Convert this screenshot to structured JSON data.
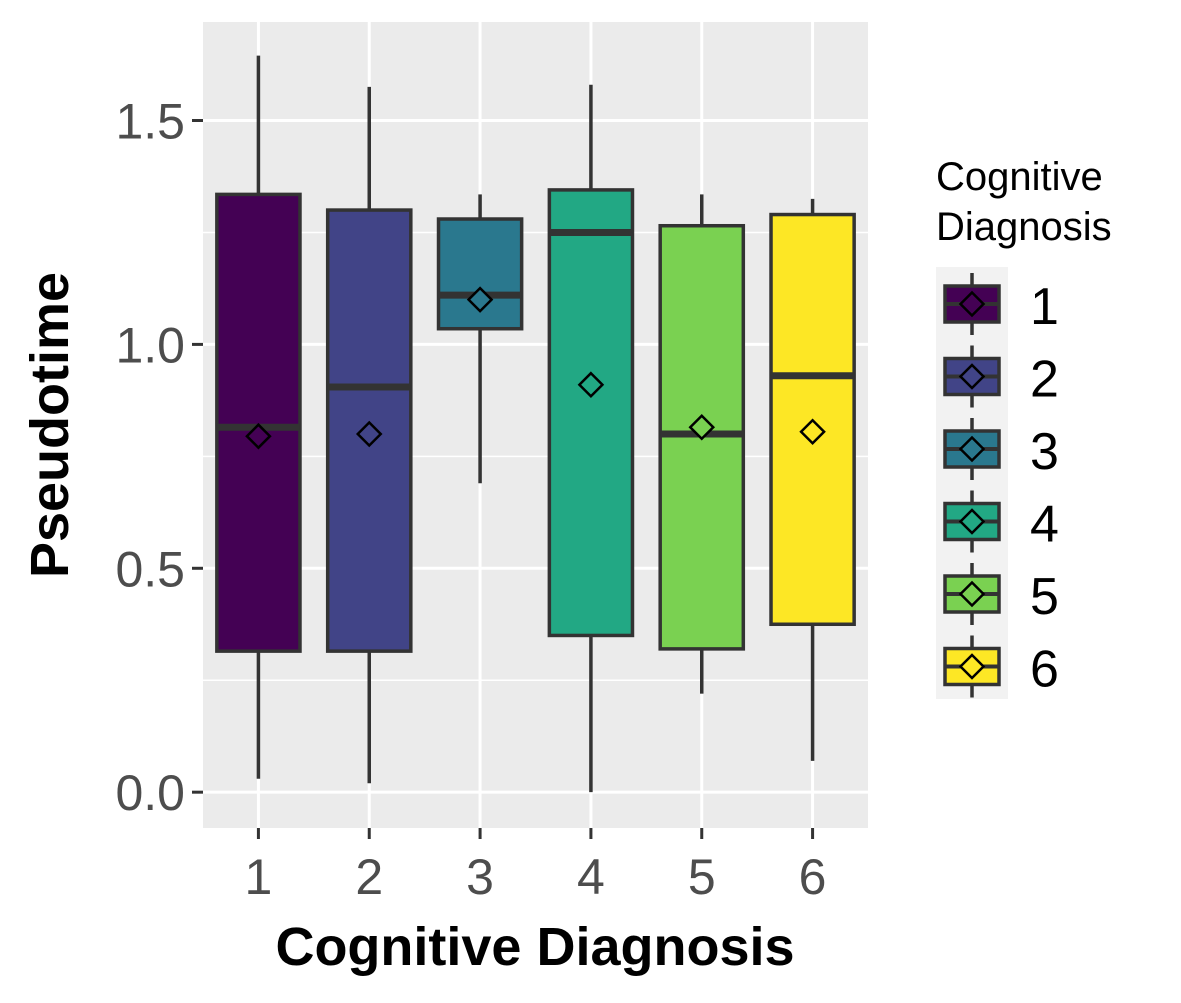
{
  "chart_data": {
    "type": "boxplot",
    "title": "",
    "xlabel": "Cognitive Diagnosis",
    "ylabel": "Pseudotime",
    "ylim": [
      -0.08,
      1.72
    ],
    "yticks": [
      "0.0",
      "0.5",
      "1.0",
      "1.5"
    ],
    "grid": true,
    "legend": {
      "title": [
        "Cognitive",
        "Diagnosis"
      ],
      "position": "right"
    },
    "categories": [
      "1",
      "2",
      "3",
      "4",
      "5",
      "6"
    ],
    "series": [
      {
        "name": "1",
        "color": "#440154",
        "whisker_low": 0.03,
        "q1": 0.315,
        "median": 0.815,
        "q3": 1.335,
        "whisker_high": 1.645,
        "mean": 0.795
      },
      {
        "name": "2",
        "color": "#414487",
        "whisker_low": 0.02,
        "q1": 0.315,
        "median": 0.905,
        "q3": 1.3,
        "whisker_high": 1.575,
        "mean": 0.8
      },
      {
        "name": "3",
        "color": "#2A788E",
        "whisker_low": 0.69,
        "q1": 1.035,
        "median": 1.11,
        "q3": 1.28,
        "whisker_high": 1.335,
        "mean": 1.1
      },
      {
        "name": "4",
        "color": "#22A884",
        "whisker_low": 0.0,
        "q1": 0.35,
        "median": 1.25,
        "q3": 1.345,
        "whisker_high": 1.58,
        "mean": 0.91
      },
      {
        "name": "5",
        "color": "#7AD151",
        "whisker_low": 0.22,
        "q1": 0.32,
        "median": 0.8,
        "q3": 1.265,
        "whisker_high": 1.335,
        "mean": 0.815
      },
      {
        "name": "6",
        "color": "#FDE725",
        "whisker_low": 0.07,
        "q1": 0.375,
        "median": 0.93,
        "q3": 1.29,
        "whisker_high": 1.325,
        "mean": 0.805
      }
    ]
  }
}
